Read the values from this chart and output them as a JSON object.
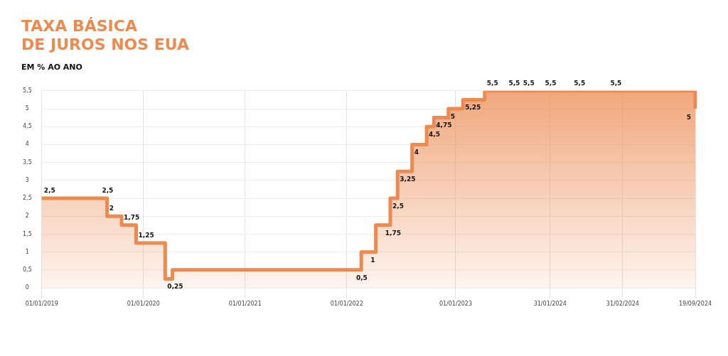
{
  "chart_data": {
    "type": "step",
    "title": "TAXA BÁSICA\nDE JUROS NOS EUA",
    "subtitle": "EM % AO ANO",
    "categories": [
      "01/01/2019",
      null,
      null,
      null,
      null,
      null,
      null,
      null,
      null,
      null,
      null,
      null,
      null,
      null,
      "01/01/2020",
      null,
      null,
      null,
      null,
      null,
      null,
      null,
      null,
      null,
      null,
      null,
      null,
      null,
      "01/01/2021",
      null,
      null,
      null,
      null,
      null,
      null,
      null,
      null,
      null,
      null,
      null,
      null,
      null,
      "01/01/2022",
      null,
      null,
      null,
      null,
      null,
      null,
      null,
      null,
      null,
      null,
      null,
      null,
      null,
      null,
      "01/01/2023",
      null,
      null,
      null,
      null,
      null,
      null,
      null,
      null,
      null,
      null,
      null,
      null,
      "31/01/2024",
      null,
      null,
      null,
      null,
      null,
      null,
      null,
      null,
      null,
      "31/02/2024",
      null,
      null,
      null,
      null,
      null,
      null,
      null,
      null,
      null,
      "19/09/2024"
    ],
    "series": [
      {
        "color": "#ec8a50",
        "values": [
          2.5,
          2.5,
          2.5,
          2.5,
          2.5,
          2.5,
          2.5,
          2.5,
          2.5,
          2,
          2,
          1.75,
          1.75,
          1.25,
          1.25,
          1.25,
          1.25,
          0.25,
          0.5,
          0.5,
          0.5,
          0.5,
          0.5,
          0.5,
          0.5,
          0.5,
          0.5,
          0.5,
          0.5,
          0.5,
          0.5,
          0.5,
          0.5,
          0.5,
          0.5,
          0.5,
          0.5,
          0.5,
          0.5,
          0.5,
          0.5,
          0.5,
          0.5,
          0.5,
          1,
          1,
          1.75,
          1.75,
          2.5,
          3.25,
          3.25,
          4,
          4,
          4.5,
          4.75,
          4.75,
          5,
          5,
          5.25,
          5.25,
          5.25,
          5.5,
          5.5,
          5.5,
          5.5,
          5.5,
          5.5,
          5.5,
          5.5,
          5.5,
          5.5,
          5.5,
          5.5,
          5.5,
          5.5,
          5.5,
          5.5,
          5.5,
          5.5,
          5.5,
          5.5,
          5.5,
          5.5,
          5.5,
          5.5,
          5.5,
          5.5,
          5.5,
          5.5,
          5.5,
          5
        ],
        "value_labels": [
          "2,5",
          null,
          null,
          null,
          null,
          null,
          null,
          null,
          "2,5",
          "2",
          null,
          "1,75",
          null,
          "1,25",
          null,
          null,
          null,
          "0,25",
          null,
          null,
          null,
          null,
          null,
          null,
          null,
          null,
          null,
          null,
          null,
          null,
          null,
          null,
          null,
          null,
          null,
          null,
          null,
          null,
          null,
          null,
          null,
          null,
          null,
          "0,5",
          null,
          "1",
          null,
          "1,75",
          "2,5",
          "3,25",
          null,
          "4",
          null,
          "4,5",
          "4,75",
          null,
          "5",
          null,
          "5,25",
          null,
          null,
          "5,5",
          null,
          null,
          "5,5",
          null,
          "5,5",
          null,
          null,
          "5,5",
          null,
          null,
          null,
          "5,5",
          null,
          null,
          null,
          null,
          "5,5",
          null,
          null,
          null,
          null,
          null,
          null,
          null,
          null,
          null,
          null,
          null,
          "5"
        ]
      }
    ],
    "ylim": [
      -0.3,
      5.5
    ],
    "yticks": [
      0,
      {
        "value": 0.5,
        "label": "0,5"
      },
      1,
      {
        "value": 1.5,
        "label": "1,5"
      },
      2,
      {
        "value": 2.5,
        "label": "2,5"
      },
      3,
      {
        "value": 3.5,
        "label": "3,5"
      },
      4,
      {
        "value": 4.5,
        "label": "4,5"
      },
      5,
      {
        "value": 5.5,
        "label": "5,5"
      }
    ],
    "grid": true,
    "legend": false,
    "marker": "none",
    "line_style": "solid"
  }
}
